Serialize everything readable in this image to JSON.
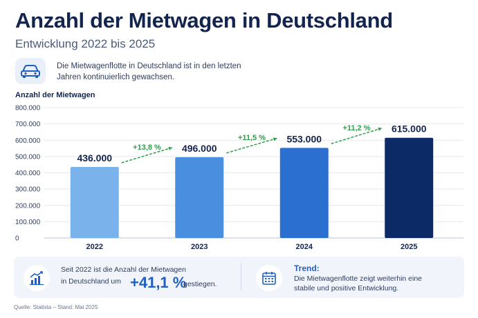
{
  "header": {
    "title": "Anzahl der Mietwagen in Deutschland",
    "subtitle": "Entwicklung 2022 bis 2025"
  },
  "info": {
    "icon": "car-icon",
    "text": "Die Mietwagenflotte in Deutschland ist in den letzten Jahren kontinuierlich gewachsen."
  },
  "chart_data": {
    "type": "bar",
    "ylabel": "Anzahl der Mietwagen",
    "categories": [
      "2022",
      "2023",
      "2024",
      "2025"
    ],
    "values": [
      436000,
      496000,
      553000,
      615000
    ],
    "value_labels": [
      "436.000",
      "496.000",
      "553.000",
      "615.000"
    ],
    "ylim": [
      0,
      800000
    ],
    "y_ticks": [
      0,
      100000,
      200000,
      300000,
      400000,
      500000,
      600000,
      700000,
      800000
    ],
    "y_tick_labels": [
      "0",
      "100.000",
      "200.000",
      "300.000",
      "400.000",
      "500.000",
      "600.000",
      "700.000",
      "800.000"
    ],
    "growth_labels": [
      "+13,8 %",
      "+11,5 %",
      "+11,2 %"
    ],
    "bar_colors": [
      "#7ab3ec",
      "#4a8fdf",
      "#2b6fd0",
      "#0b2a66"
    ],
    "growth_color": "#2e9e4a",
    "grid": true
  },
  "summary": {
    "growth": {
      "icon": "chart-growth-icon",
      "text_before": "Seit 2022 ist die Anzahl der Mietwagen in Deutschland um",
      "value": "+41,1 %",
      "text_after": "gestiegen."
    },
    "trend": {
      "icon": "calendar-icon",
      "title": "Trend:",
      "text": "Die Mietwagenflotte zeigt weiterhin eine stabile und positive Entwicklung."
    }
  },
  "source": "Quelle: Statista – Stand: Mai 2025"
}
